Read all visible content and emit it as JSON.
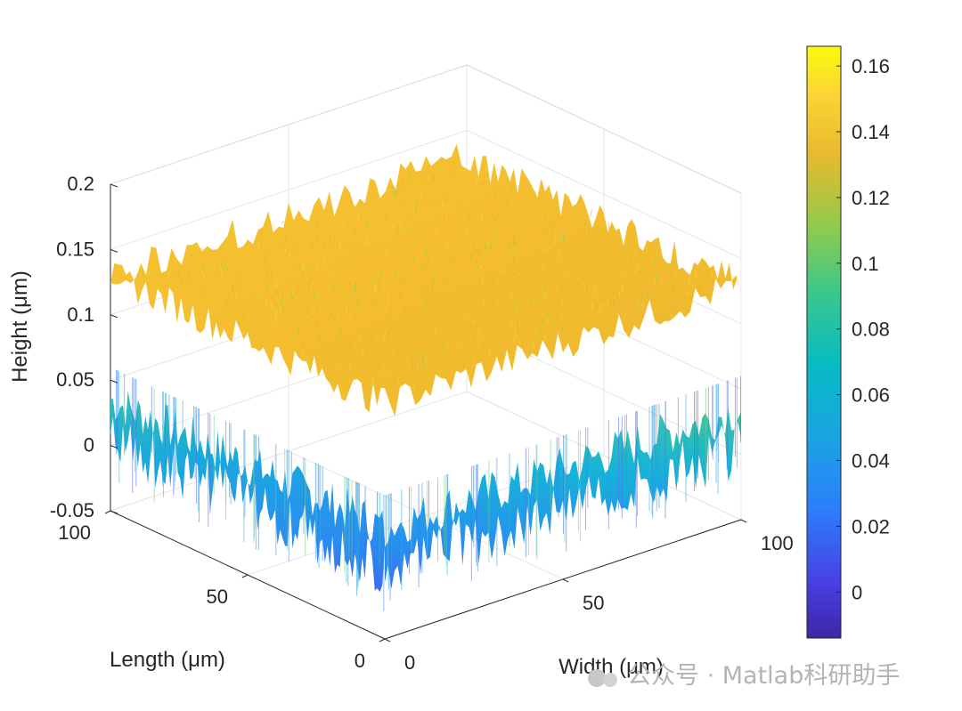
{
  "chart_data": {
    "type": "surface",
    "title": "",
    "xlabel": "Width (μm)",
    "ylabel": "Length (μm)",
    "zlabel": "Height (μm)",
    "x_ticks": [
      "0",
      "50",
      "100"
    ],
    "y_ticks": [
      "0",
      "50",
      "100"
    ],
    "z_ticks": [
      "-0.05",
      "0",
      "0.05",
      "0.1",
      "0.15",
      "0.2"
    ],
    "xlim": [
      0,
      100
    ],
    "ylim": [
      0,
      100
    ],
    "zlim": [
      -0.05,
      0.2
    ],
    "grid": true,
    "colormap": "parula",
    "colorbar": {
      "ticks": [
        "0",
        "0.02",
        "0.04",
        "0.06",
        "0.08",
        "0.1",
        "0.12",
        "0.14",
        "0.16"
      ],
      "range": [
        -0.014,
        0.166
      ]
    },
    "surface": {
      "description_values": "rough surface with a planar top at about 0.13 and side walls dropping to about 0.03",
      "top_mean": 0.13,
      "side_mean": 0.03
    }
  },
  "watermark": "公众号 · Matlab科研助手"
}
